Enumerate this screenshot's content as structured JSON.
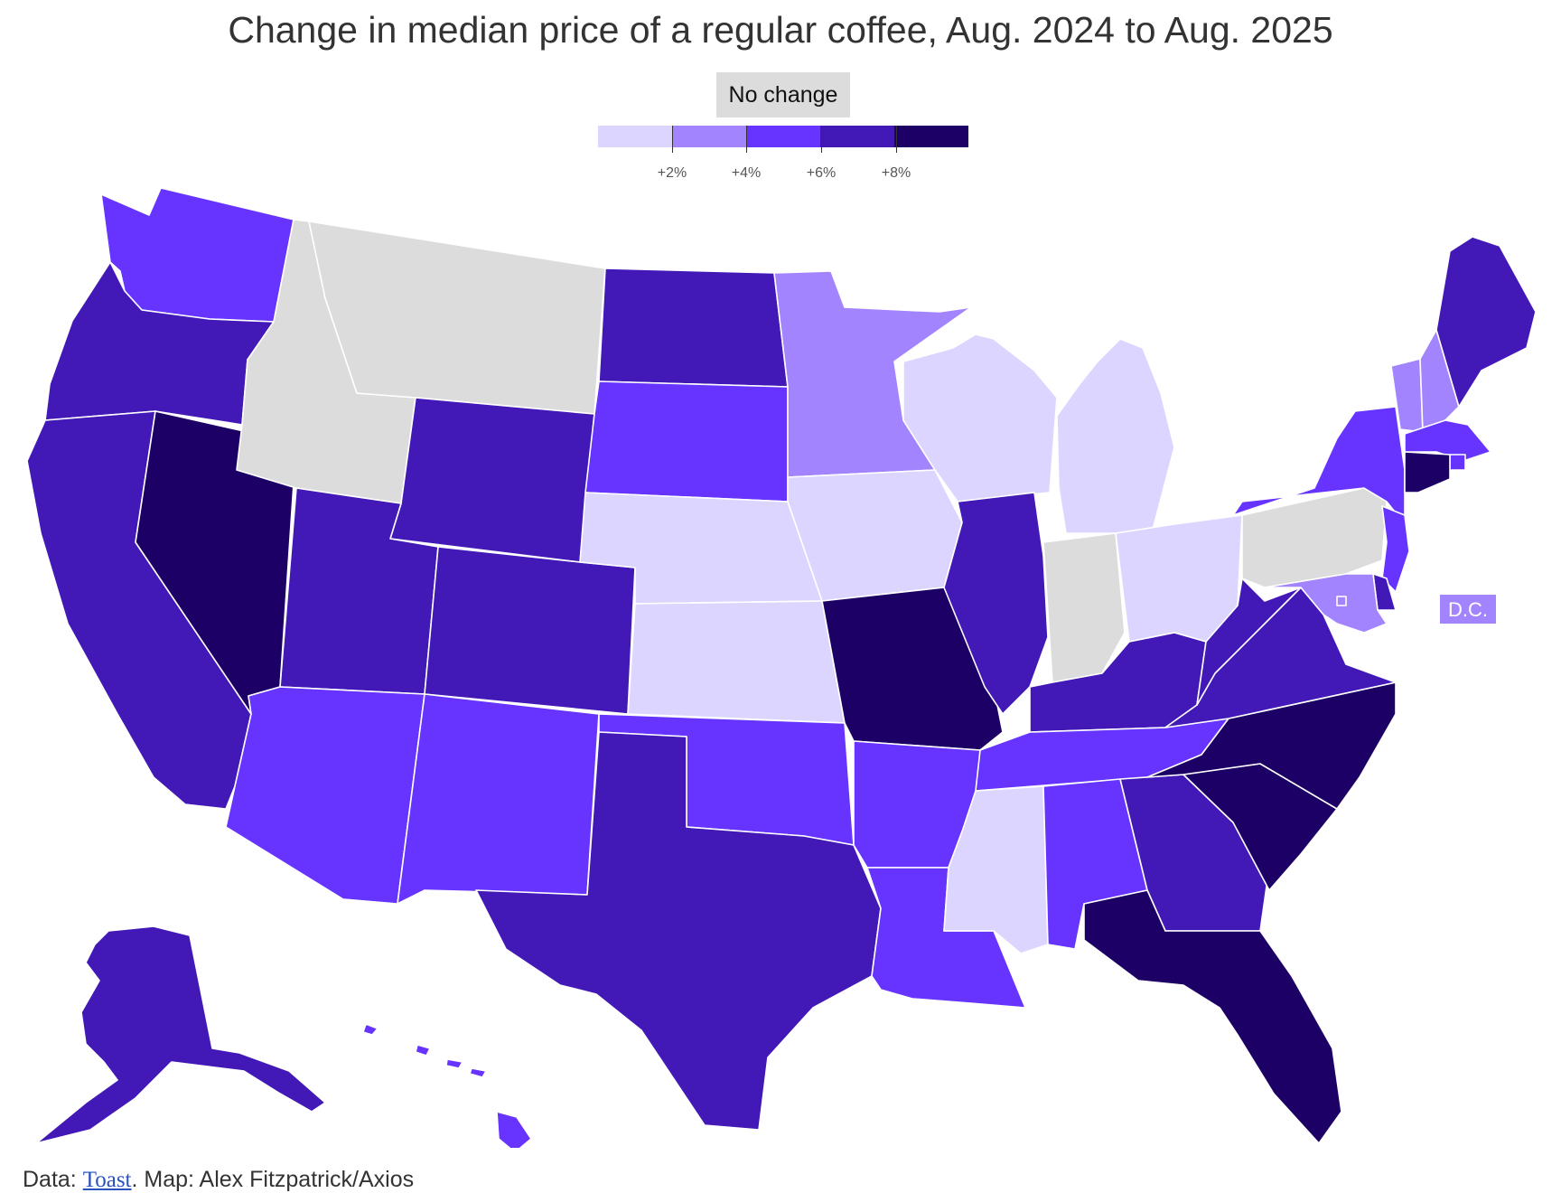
{
  "chart_data": {
    "type": "choropleth",
    "title": "Change in median price of a regular coffee, Aug. 2024 to Aug. 2025",
    "legend": {
      "no_change_label": "No change",
      "no_change_color": "#dcdcdc",
      "bins": [
        {
          "min": 0,
          "max": 2,
          "color": "#dcd5ff"
        },
        {
          "min": 2,
          "max": 4,
          "color": "#a384ff"
        },
        {
          "min": 4,
          "max": 6,
          "color": "#6633ff"
        },
        {
          "min": 6,
          "max": 8,
          "color": "#4218b6"
        },
        {
          "min": 8,
          "max": 10,
          "color": "#1c0066"
        }
      ],
      "tick_labels": [
        "+2%",
        "+4%",
        "+6%",
        "+8%"
      ]
    },
    "states": [
      {
        "abbr": "WA",
        "bin": 3
      },
      {
        "abbr": "OR",
        "bin": 4
      },
      {
        "abbr": "CA",
        "bin": 4
      },
      {
        "abbr": "NV",
        "bin": 5
      },
      {
        "abbr": "ID",
        "bin": 0
      },
      {
        "abbr": "MT",
        "bin": 0
      },
      {
        "abbr": "WY",
        "bin": 4
      },
      {
        "abbr": "UT",
        "bin": 4
      },
      {
        "abbr": "CO",
        "bin": 4
      },
      {
        "abbr": "AZ",
        "bin": 3
      },
      {
        "abbr": "NM",
        "bin": 3
      },
      {
        "abbr": "ND",
        "bin": 4
      },
      {
        "abbr": "SD",
        "bin": 3
      },
      {
        "abbr": "NE",
        "bin": 1
      },
      {
        "abbr": "KS",
        "bin": 1
      },
      {
        "abbr": "OK",
        "bin": 3
      },
      {
        "abbr": "TX",
        "bin": 4
      },
      {
        "abbr": "MN",
        "bin": 2
      },
      {
        "abbr": "IA",
        "bin": 1
      },
      {
        "abbr": "MO",
        "bin": 5
      },
      {
        "abbr": "AR",
        "bin": 3
      },
      {
        "abbr": "LA",
        "bin": 3
      },
      {
        "abbr": "WI",
        "bin": 1
      },
      {
        "abbr": "IL",
        "bin": 4
      },
      {
        "abbr": "MI",
        "bin": 1
      },
      {
        "abbr": "IN",
        "bin": 0
      },
      {
        "abbr": "OH",
        "bin": 1
      },
      {
        "abbr": "KY",
        "bin": 4
      },
      {
        "abbr": "TN",
        "bin": 3
      },
      {
        "abbr": "MS",
        "bin": 1
      },
      {
        "abbr": "AL",
        "bin": 3
      },
      {
        "abbr": "GA",
        "bin": 4
      },
      {
        "abbr": "FL",
        "bin": 5
      },
      {
        "abbr": "SC",
        "bin": 5
      },
      {
        "abbr": "NC",
        "bin": 5
      },
      {
        "abbr": "VA",
        "bin": 4
      },
      {
        "abbr": "WV",
        "bin": 4
      },
      {
        "abbr": "PA",
        "bin": 0
      },
      {
        "abbr": "NY",
        "bin": 3
      },
      {
        "abbr": "VT",
        "bin": 2
      },
      {
        "abbr": "NH",
        "bin": 2
      },
      {
        "abbr": "ME",
        "bin": 4
      },
      {
        "abbr": "MA",
        "bin": 3
      },
      {
        "abbr": "RI",
        "bin": 3
      },
      {
        "abbr": "CT",
        "bin": 5
      },
      {
        "abbr": "NJ",
        "bin": 3
      },
      {
        "abbr": "DE",
        "bin": 4
      },
      {
        "abbr": "MD",
        "bin": 2
      },
      {
        "abbr": "DC",
        "bin": 2
      },
      {
        "abbr": "AK",
        "bin": 4
      },
      {
        "abbr": "HI",
        "bin": 3
      }
    ],
    "dc_label": "D.C."
  },
  "footer": {
    "prefix": "Data: ",
    "source_link": "Toast",
    "suffix": ". Map: Alex Fitzpatrick/Axios"
  }
}
